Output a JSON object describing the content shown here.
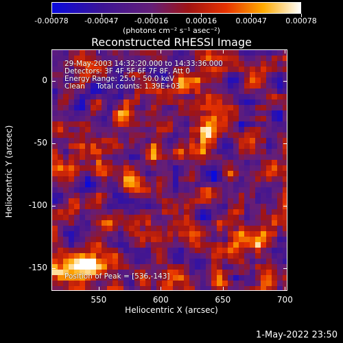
{
  "colorbar": {
    "ticks": [
      "-0.00078",
      "-0.00047",
      "-0.00016",
      "0.00016",
      "0.00047",
      "0.00078"
    ],
    "units": "(photons cm⁻² s⁻¹ asec⁻²)"
  },
  "title": "Reconstructed RHESSI Image",
  "annotations": {
    "time": "29-May-2003 14:32:20.000 to 14:33:36.000",
    "detectors": "Detectors: 3F 4F 5F 6F 7F 8F, Att 0",
    "energy": "Energy Range: 25.0 - 50.0 keV",
    "clean": "Clean     Total counts: 1.39E+03",
    "peak": "Position of Peak = [536,-143]"
  },
  "axes": {
    "x_title": "Heliocentric X (arcsec)",
    "y_title": "Heliocentric Y (arcsec)",
    "x_ticks": [
      "550",
      "600",
      "650",
      "700"
    ],
    "y_ticks": [
      "0",
      "-50",
      "-100",
      "-150"
    ]
  },
  "timestamp": "1-May-2022 23:50",
  "chart_data": {
    "type": "heatmap",
    "title": "Reconstructed RHESSI Image",
    "xlabel": "Heliocentric X (arcsec)",
    "ylabel": "Heliocentric Y (arcsec)",
    "xlim": [
      512,
      702
    ],
    "ylim": [
      -168,
      25
    ],
    "color_range": [
      -0.00078,
      0.00078
    ],
    "colormap": "blue-purple-red-yellow-white",
    "peak": [
      536,
      -143
    ]
  }
}
